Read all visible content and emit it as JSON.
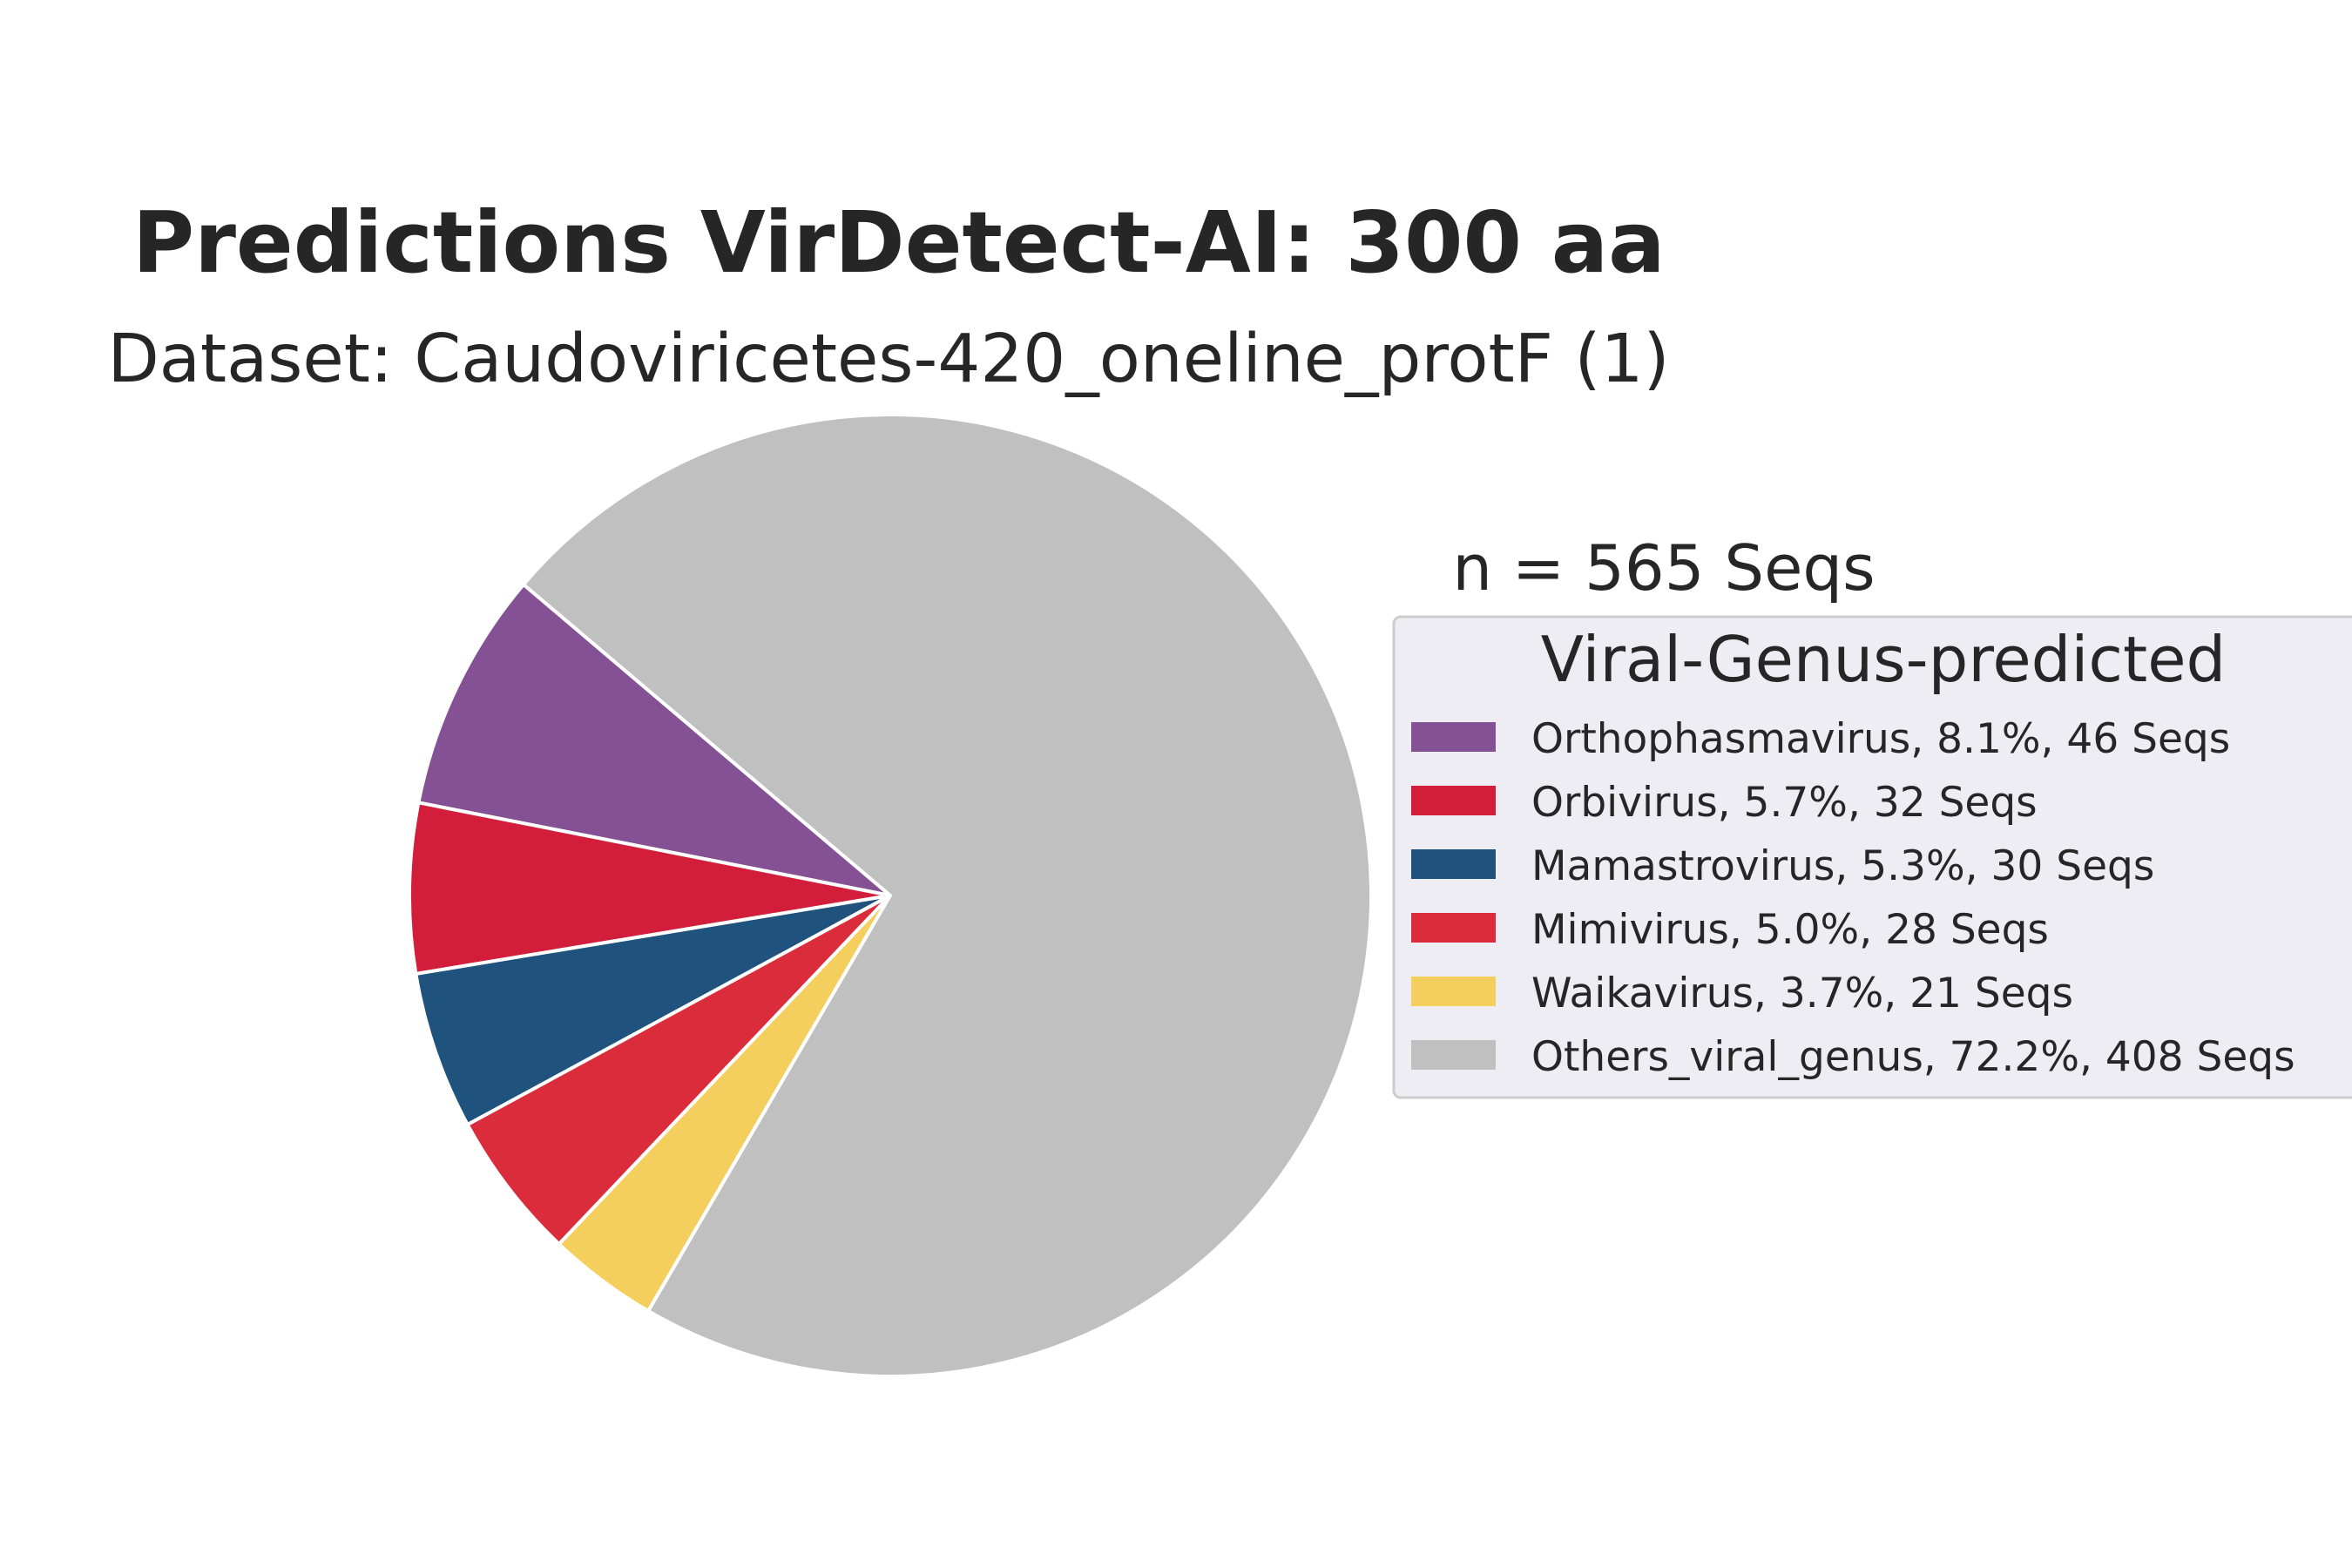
{
  "chart_data": {
    "type": "pie",
    "title": "Predictions VirDetect-AI: 300 aa",
    "subtitle": "Dataset: Caudoviricetes-420_oneline_protF (1)",
    "annotation": "n = 565 Seqs",
    "legend_title": "Viral-Genus-predicted",
    "legend_position": "right",
    "start_angle_deg": 139.7,
    "direction": "counterclockwise",
    "slices": [
      {
        "label": "Orthophasmavirus, 8.1%, 46 Seqs",
        "name": "Orthophasmavirus",
        "percent": 8.1,
        "count": 46,
        "color": "#845194"
      },
      {
        "label": "Orbivirus, 5.7%, 32 Seqs",
        "name": "Orbivirus",
        "percent": 5.7,
        "count": 32,
        "color": "#d21e3a"
      },
      {
        "label": "Mamastrovirus, 5.3%, 30 Seqs",
        "name": "Mamastrovirus",
        "percent": 5.3,
        "count": 30,
        "color": "#1f527d"
      },
      {
        "label": "Mimivirus, 5.0%, 28 Seqs",
        "name": "Mimivirus",
        "percent": 5.0,
        "count": 28,
        "color": "#da2c3a"
      },
      {
        "label": "Waikavirus, 3.7%, 21 Seqs",
        "name": "Waikavirus",
        "percent": 3.7,
        "count": 21,
        "color": "#f5cf5e"
      },
      {
        "label": "Others_viral_genus, 72.2%, 408 Seqs",
        "name": "Others_viral_genus",
        "percent": 72.2,
        "count": 408,
        "color": "#c0c0c0"
      }
    ]
  },
  "colors": {
    "legend_bg": "#eeedf3",
    "legend_border": "#cccccc",
    "edge": "#ffffff"
  }
}
